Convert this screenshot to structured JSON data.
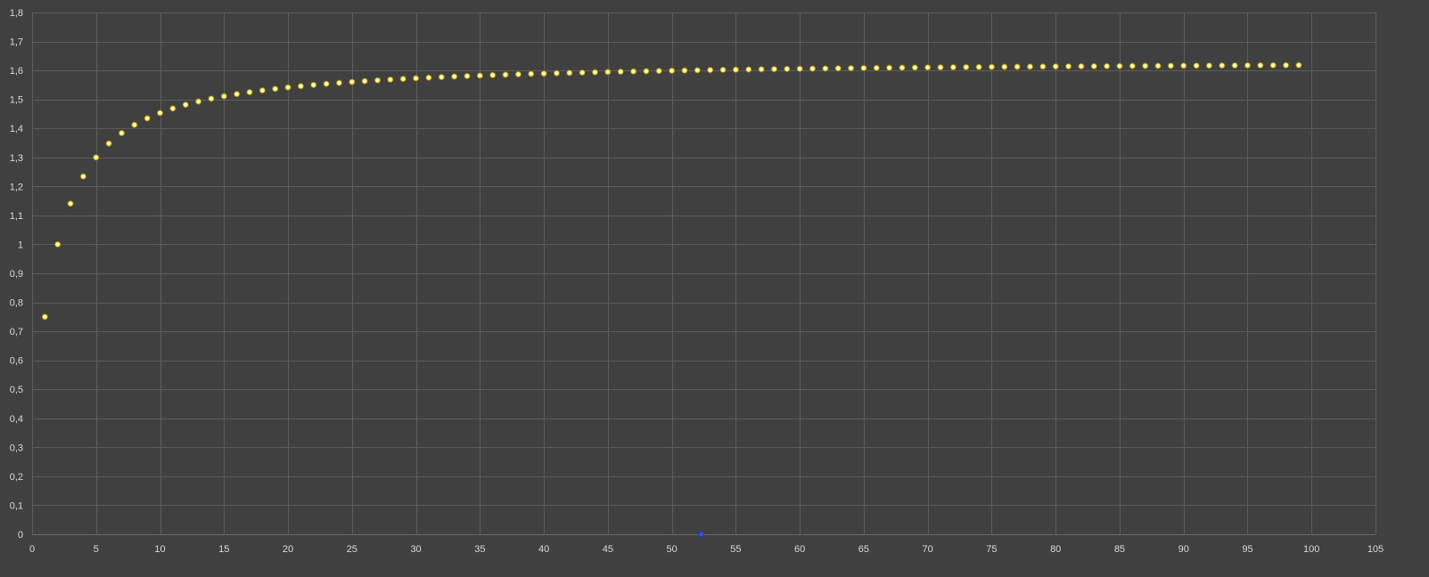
{
  "chart_data": {
    "type": "scatter",
    "title": "",
    "xlabel": "",
    "ylabel": "",
    "xlim": [
      0,
      105
    ],
    "ylim": [
      0,
      1.8
    ],
    "x_ticks": [
      0,
      5,
      10,
      15,
      20,
      25,
      30,
      35,
      40,
      45,
      50,
      55,
      60,
      65,
      70,
      75,
      80,
      85,
      90,
      95,
      100,
      105
    ],
    "x_tick_labels": [
      "0",
      "5",
      "10",
      "15",
      "20",
      "25",
      "30",
      "35",
      "40",
      "45",
      "50",
      "55",
      "60",
      "65",
      "70",
      "75",
      "80",
      "85",
      "90",
      "95",
      "100",
      "105"
    ],
    "y_ticks": [
      0,
      0.1,
      0.2,
      0.3,
      0.4,
      0.5,
      0.6,
      0.7,
      0.8,
      0.9,
      1,
      1.1,
      1.2,
      1.3,
      1.4,
      1.5,
      1.6,
      1.7,
      1.8
    ],
    "y_tick_labels": [
      "0",
      "0,1",
      "0,2",
      "0,3",
      "0,4",
      "0,5",
      "0,6",
      "0,7",
      "0,8",
      "0,9",
      "1",
      "1,1",
      "1,2",
      "1,3",
      "1,4",
      "1,5",
      "1,6",
      "1,7",
      "1,8"
    ],
    "grid": true,
    "legend": "none",
    "series": [
      {
        "color": "#ffe600",
        "x": [
          1,
          2,
          3,
          4,
          5,
          6,
          7,
          8,
          9,
          10,
          11,
          12,
          13,
          14,
          15,
          16,
          17,
          18,
          19,
          20,
          21,
          22,
          23,
          24,
          25,
          26,
          27,
          28,
          29,
          30,
          31,
          32,
          33,
          34,
          35,
          36,
          37,
          38,
          39,
          40,
          41,
          42,
          43,
          44,
          45,
          46,
          47,
          48,
          49,
          50,
          51,
          52,
          53,
          54,
          55,
          56,
          57,
          58,
          59,
          60,
          61,
          62,
          63,
          64,
          65,
          66,
          67,
          68,
          69,
          70,
          71,
          72,
          73,
          74,
          75,
          76,
          77,
          78,
          79,
          80,
          81,
          82,
          83,
          84,
          85,
          86,
          87,
          88,
          89,
          90,
          91,
          92,
          93,
          94,
          95,
          96,
          97,
          98,
          99
        ],
        "y": [
          0.75,
          1.0,
          1.1406,
          1.2344,
          1.3,
          1.3479,
          1.384,
          1.4122,
          1.4348,
          1.4533,
          1.4687,
          1.4817,
          1.4929,
          1.5026,
          1.5111,
          1.5186,
          1.5252,
          1.5312,
          1.5366,
          1.5415,
          1.5459,
          1.55,
          1.5537,
          1.5571,
          1.5603,
          1.5632,
          1.566,
          1.5685,
          1.5709,
          1.5731,
          1.5752,
          1.5771,
          1.579,
          1.5807,
          1.5823,
          1.5839,
          1.5853,
          1.5867,
          1.5881,
          1.5893,
          1.5905,
          1.5916,
          1.5927,
          1.5938,
          1.5948,
          1.5957,
          1.5966,
          1.5975,
          1.5983,
          1.5991,
          1.5999,
          1.6007,
          1.6014,
          1.6021,
          1.6027,
          1.6034,
          1.604,
          1.6046,
          1.6051,
          1.6057,
          1.6062,
          1.6067,
          1.6072,
          1.6077,
          1.6082,
          1.6086,
          1.6091,
          1.6095,
          1.6099,
          1.6103,
          1.6107,
          1.611,
          1.6114,
          1.6118,
          1.6121,
          1.6124,
          1.6128,
          1.6131,
          1.6134,
          1.6137,
          1.614,
          1.6143,
          1.6145,
          1.6148,
          1.6151,
          1.6153,
          1.6156,
          1.6158,
          1.6161,
          1.6163,
          1.6165,
          1.6167,
          1.617,
          1.6172,
          1.6174,
          1.6176,
          1.6178,
          1.618,
          1.6182
        ]
      },
      {
        "color": "#3a4fd8",
        "x": [
          52.3
        ],
        "y": [
          0
        ]
      }
    ]
  }
}
